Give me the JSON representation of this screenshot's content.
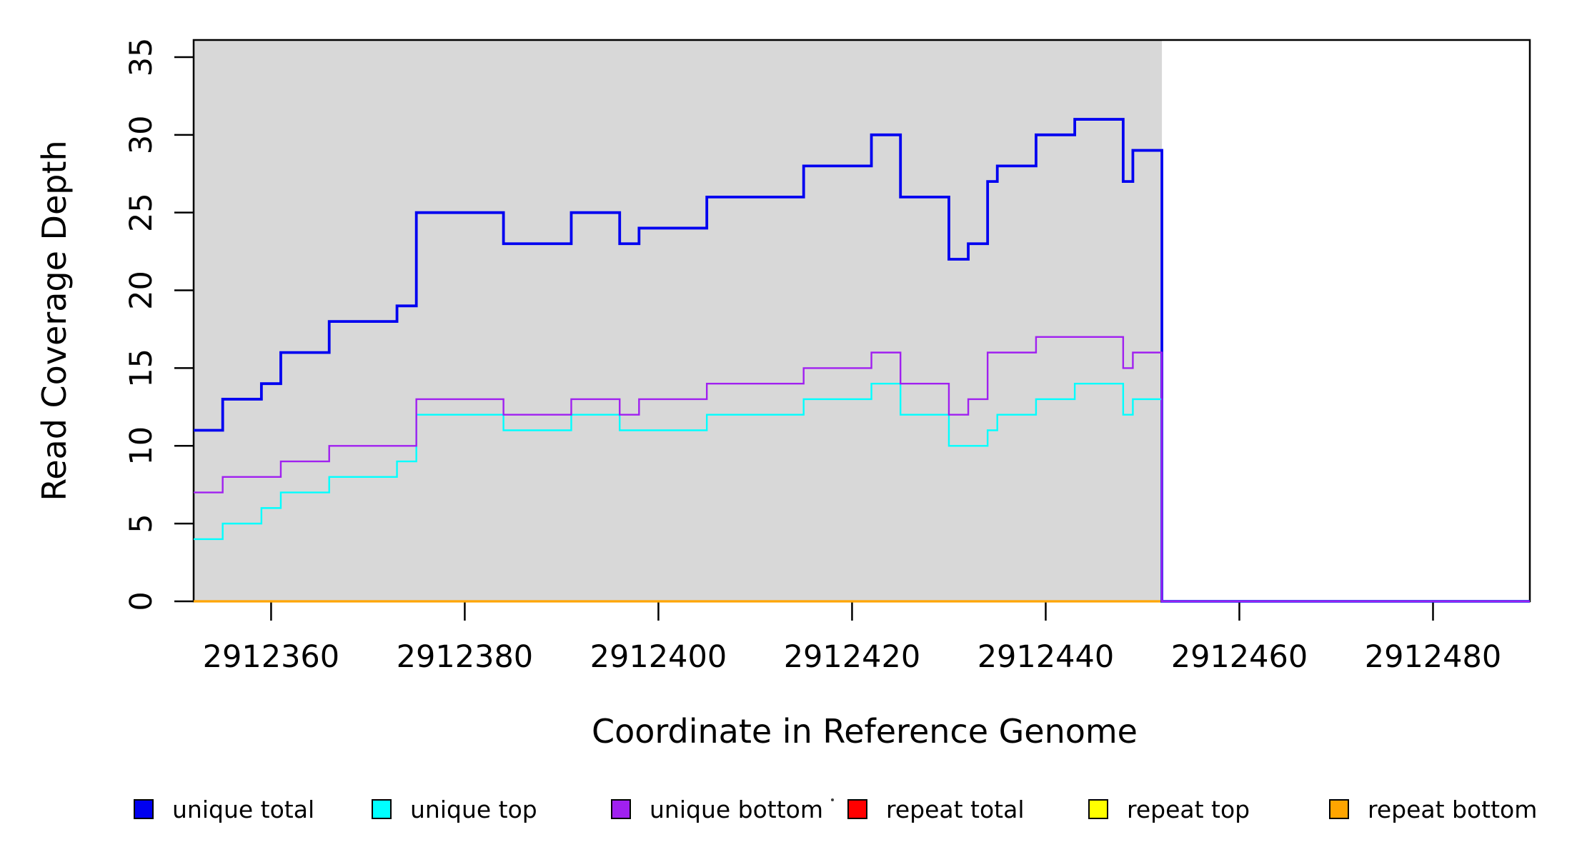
{
  "chart_data": {
    "type": "step-line",
    "title": "",
    "xlabel": "Coordinate in Reference Genome",
    "ylabel": "Read Coverage Depth",
    "x_range": [
      2912352,
      2912490
    ],
    "y_range": [
      0,
      36.1
    ],
    "x_ticks": [
      2912360,
      2912380,
      2912400,
      2912420,
      2912440,
      2912460,
      2912480
    ],
    "y_ticks": [
      0,
      5,
      10,
      15,
      20,
      25,
      30,
      35
    ],
    "grid": false,
    "legend_position": "bottom",
    "shaded_region": {
      "start": 2912352,
      "end": 2912452,
      "color": "#d8d8d8"
    },
    "series": [
      {
        "name": "repeat total",
        "color": "#ff0000",
        "width": 3,
        "points": [
          [
            2912352,
            0
          ]
        ],
        "end_x": 2912452
      },
      {
        "name": "repeat top",
        "color": "#ffff00",
        "width": 3,
        "points": [
          [
            2912352,
            0
          ]
        ],
        "end_x": 2912452
      },
      {
        "name": "repeat bottom",
        "color": "#ffa500",
        "width": 3.2,
        "points": [
          [
            2912352,
            0
          ]
        ],
        "end_x": 2912452
      },
      {
        "name": "unique total",
        "color": "#0000f0",
        "width": 3.8,
        "points": [
          [
            2912352,
            11
          ],
          [
            2912355,
            13
          ],
          [
            2912359,
            14
          ],
          [
            2912361,
            16
          ],
          [
            2912366,
            18
          ],
          [
            2912373,
            19
          ],
          [
            2912375,
            25
          ],
          [
            2912384,
            23
          ],
          [
            2912391,
            25
          ],
          [
            2912396,
            23
          ],
          [
            2912398,
            24
          ],
          [
            2912405,
            26
          ],
          [
            2912415,
            28
          ],
          [
            2912422,
            30
          ],
          [
            2912425,
            26
          ],
          [
            2912430,
            22
          ],
          [
            2912432,
            23
          ],
          [
            2912434,
            27
          ],
          [
            2912435,
            28
          ],
          [
            2912439,
            30
          ],
          [
            2912443,
            31
          ],
          [
            2912448,
            27
          ],
          [
            2912449,
            29
          ],
          [
            2912452,
            0
          ]
        ],
        "end_x": 2912490
      },
      {
        "name": "unique top",
        "color": "#00ffff",
        "width": 2.4,
        "points": [
          [
            2912352,
            4
          ],
          [
            2912355,
            5
          ],
          [
            2912359,
            6
          ],
          [
            2912361,
            7
          ],
          [
            2912366,
            8
          ],
          [
            2912373,
            9
          ],
          [
            2912375,
            12
          ],
          [
            2912384,
            11
          ],
          [
            2912391,
            12
          ],
          [
            2912396,
            11
          ],
          [
            2912405,
            12
          ],
          [
            2912415,
            13
          ],
          [
            2912422,
            14
          ],
          [
            2912425,
            12
          ],
          [
            2912430,
            10
          ],
          [
            2912434,
            11
          ],
          [
            2912435,
            12
          ],
          [
            2912439,
            13
          ],
          [
            2912443,
            14
          ],
          [
            2912448,
            12
          ],
          [
            2912449,
            13
          ],
          [
            2912452,
            0
          ]
        ],
        "end_x": 2912490
      },
      {
        "name": "unique bottom",
        "color": "#a020f0",
        "width": 2.4,
        "points": [
          [
            2912352,
            7
          ],
          [
            2912355,
            8
          ],
          [
            2912361,
            9
          ],
          [
            2912366,
            10
          ],
          [
            2912375,
            13
          ],
          [
            2912384,
            12
          ],
          [
            2912391,
            13
          ],
          [
            2912396,
            12
          ],
          [
            2912398,
            13
          ],
          [
            2912405,
            14
          ],
          [
            2912415,
            15
          ],
          [
            2912422,
            16
          ],
          [
            2912425,
            14
          ],
          [
            2912430,
            12
          ],
          [
            2912432,
            13
          ],
          [
            2912434,
            16
          ],
          [
            2912439,
            17
          ],
          [
            2912448,
            15
          ],
          [
            2912449,
            16
          ],
          [
            2912452,
            0
          ]
        ],
        "end_x": 2912490
      }
    ]
  },
  "axes": {
    "x_label": "Coordinate in Reference Genome",
    "y_label": "Read Coverage Depth",
    "x_tick_labels": [
      "2912360",
      "2912380",
      "2912400",
      "2912420",
      "2912440",
      "2912460",
      "2912480"
    ],
    "y_tick_labels": [
      "0",
      "5",
      "10",
      "15",
      "20",
      "25",
      "30",
      "35"
    ]
  },
  "legend": {
    "items": [
      {
        "label": "unique total",
        "color": "#0000f0"
      },
      {
        "label": "unique top",
        "color": "#00ffff"
      },
      {
        "label": "unique bottom",
        "color": "#a020f0"
      },
      {
        "label": "repeat total",
        "color": "#ff0000"
      },
      {
        "label": "repeat top",
        "color": "#ffff00"
      },
      {
        "label": "repeat bottom",
        "color": "#ffa500"
      }
    ]
  },
  "colors": {
    "plot_background": "#ffffff",
    "shaded_region": "#d8d8d8",
    "axis": "#000000"
  }
}
